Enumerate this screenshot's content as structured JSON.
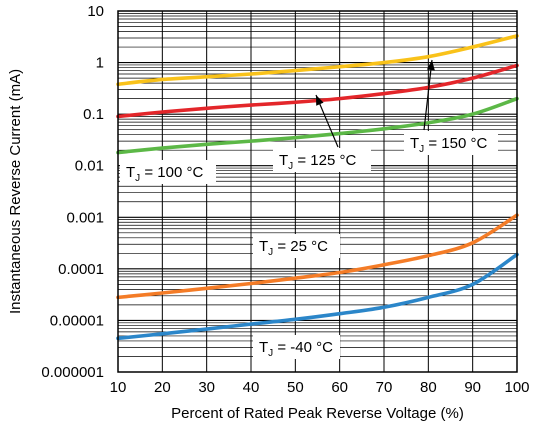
{
  "chart_data": {
    "type": "line",
    "title": "",
    "xlabel": "Percent of Rated Peak Reverse Voltage (%)",
    "ylabel": "Instantaneous Reverse Current (mA)",
    "x_scale": "linear",
    "y_scale": "log",
    "xlim": [
      10,
      100
    ],
    "ylim": [
      1e-06,
      10
    ],
    "grid": true,
    "x_ticks": [
      "10",
      "20",
      "30",
      "40",
      "50",
      "60",
      "70",
      "80",
      "90",
      "100"
    ],
    "y_ticks": [
      "0.000001",
      "0.00001",
      "0.0001",
      "0.001",
      "0.01",
      "0.1",
      "1",
      "10"
    ],
    "series": [
      {
        "name": "T_J = 150 °C",
        "color": "#f9c21a",
        "x": [
          10,
          20,
          30,
          40,
          50,
          60,
          70,
          80,
          90,
          100
        ],
        "y": [
          0.38,
          0.47,
          0.53,
          0.6,
          0.7,
          0.83,
          1.0,
          1.3,
          2.0,
          3.3
        ]
      },
      {
        "name": "T_J = 125 °C",
        "color": "#e3262a",
        "x": [
          10,
          20,
          30,
          40,
          50,
          60,
          70,
          80,
          90,
          100
        ],
        "y": [
          0.09,
          0.11,
          0.13,
          0.15,
          0.17,
          0.2,
          0.25,
          0.33,
          0.5,
          0.88
        ]
      },
      {
        "name": "T_J = 100 °C",
        "color": "#5cb847",
        "x": [
          10,
          20,
          30,
          40,
          50,
          60,
          70,
          80,
          90,
          100
        ],
        "y": [
          0.018,
          0.022,
          0.026,
          0.03,
          0.035,
          0.042,
          0.052,
          0.068,
          0.1,
          0.2
        ]
      },
      {
        "name": "T_J = 25 °C",
        "color": "#f47c27",
        "x": [
          10,
          20,
          30,
          40,
          50,
          60,
          70,
          80,
          90,
          100
        ],
        "y": [
          2.8e-05,
          3.4e-05,
          4.2e-05,
          5.2e-05,
          6.6e-05,
          8.5e-05,
          0.00012,
          0.00018,
          0.00032,
          0.0011
        ]
      },
      {
        "name": "T_J = -40 °C",
        "color": "#2b86c9",
        "x": [
          10,
          20,
          30,
          40,
          50,
          60,
          70,
          80,
          90,
          100
        ],
        "y": [
          4.5e-06,
          5.5e-06,
          6.8e-06,
          8.5e-06,
          1.05e-05,
          1.35e-05,
          1.8e-05,
          2.8e-05,
          5e-05,
          0.00019
        ]
      }
    ],
    "annotations": [
      {
        "series": "T_J = 150 °C",
        "main": "T",
        "sub": "J",
        "rest": " = 150 °C"
      },
      {
        "series": "T_J = 125 °C",
        "main": "T",
        "sub": "J",
        "rest": " = 125 °C"
      },
      {
        "series": "T_J = 100 °C",
        "main": "T",
        "sub": "J",
        "rest": " = 100 °C"
      },
      {
        "series": "T_J = 25 °C",
        "main": "T",
        "sub": "J",
        "rest": " = 25 °C"
      },
      {
        "series": "T_J = -40 °C",
        "main": "T",
        "sub": "J",
        "rest": " = -40 °C"
      }
    ]
  }
}
